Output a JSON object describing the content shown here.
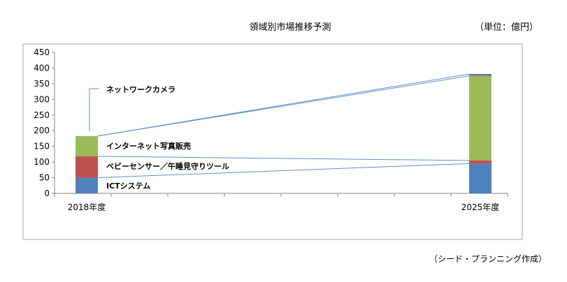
{
  "title": "領域別市場推移予測",
  "unit_label": "（単位：億円）",
  "source_label": "（シード・プランニング作成）",
  "chart_data": {
    "type": "bar",
    "stacked": true,
    "categories": [
      "2018年度",
      "2025年度"
    ],
    "ylim": [
      0,
      450
    ],
    "yticks": [
      0,
      50,
      100,
      150,
      200,
      250,
      300,
      350,
      400,
      450
    ],
    "grid": false,
    "series": [
      {
        "name": "ICTシステム",
        "color": "#4f81bd",
        "values": [
          50,
          95
        ]
      },
      {
        "name": "ベビーセンサー／午睡見守りツール",
        "color": "#c0504d",
        "values": [
          68,
          10
        ]
      },
      {
        "name": "インターネット写真販売",
        "color": "#9bbb59",
        "values": [
          65,
          270
        ]
      },
      {
        "name": "ネットワークカメラ",
        "color": "#8064a2",
        "values": [
          0,
          6
        ]
      }
    ]
  }
}
